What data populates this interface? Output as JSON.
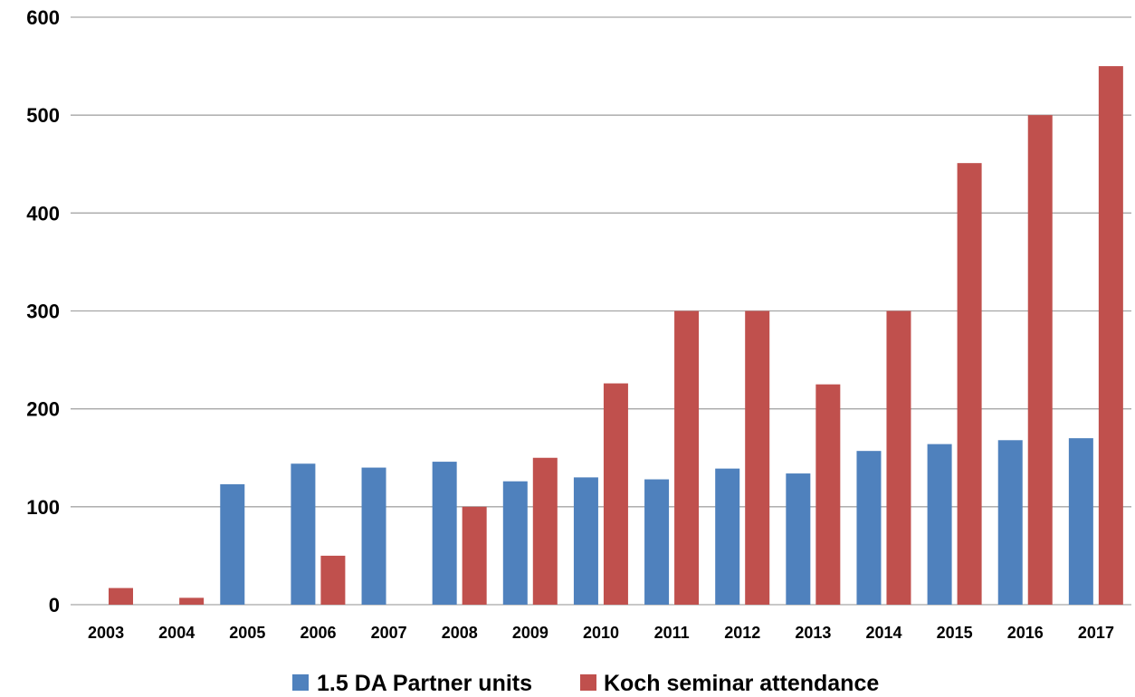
{
  "chart_data": {
    "type": "bar",
    "categories": [
      "2003",
      "2004",
      "2005",
      "2006",
      "2007",
      "2008",
      "2009",
      "2010",
      "2011",
      "2012",
      "2013",
      "2014",
      "2015",
      "2016",
      "2017"
    ],
    "series": [
      {
        "name": "1.5 DA Partner units",
        "color": "#4f81bd",
        "values": [
          null,
          null,
          123,
          144,
          140,
          146,
          126,
          130,
          128,
          139,
          134,
          157,
          164,
          168,
          170
        ]
      },
      {
        "name": "Koch seminar attendance",
        "color": "#c0504d",
        "values": [
          17,
          7,
          null,
          50,
          null,
          100,
          150,
          226,
          300,
          300,
          225,
          300,
          451,
          500,
          550
        ]
      }
    ],
    "yticks": [
      "0",
      "100",
      "200",
      "300",
      "400",
      "500",
      "600"
    ],
    "ylim": [
      0,
      600
    ],
    "grid": true,
    "gridline_color": "#a6a6a6",
    "legend_position": "bottom",
    "title": "",
    "xlabel": "",
    "ylabel": ""
  }
}
